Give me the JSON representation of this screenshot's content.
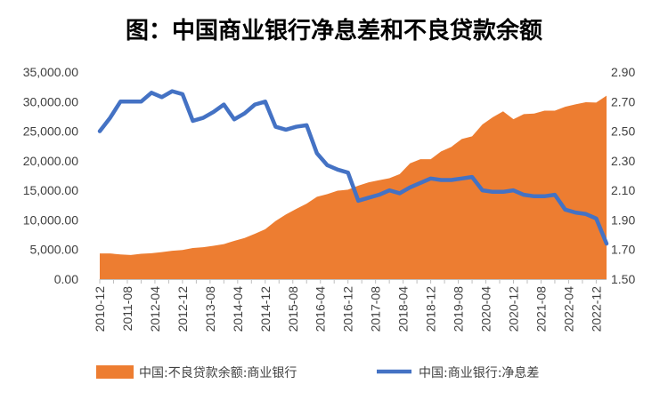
{
  "chart_data": {
    "type": "area+line",
    "title": "图：中国商业银行净息差和不良贷款余额",
    "xlabel": "",
    "ylabel": "",
    "y_left": {
      "min": 0,
      "max": 35000,
      "step": 5000,
      "ticks": [
        "0.00",
        "5,000.00",
        "10,000.00",
        "15,000.00",
        "20,000.00",
        "25,000.00",
        "30,000.00",
        "35,000.00"
      ]
    },
    "y_right": {
      "min": 1.5,
      "max": 2.9,
      "step": 0.2,
      "ticks": [
        "1.50",
        "1.70",
        "1.90",
        "2.10",
        "2.30",
        "2.50",
        "2.70",
        "2.90"
      ]
    },
    "x_tick_labels": [
      "2010-12",
      "2011-08",
      "2012-04",
      "2012-12",
      "2013-08",
      "2014-04",
      "2014-12",
      "2015-08",
      "2016-04",
      "2016-12",
      "2017-08",
      "2018-04",
      "2018-12",
      "2019-08",
      "2020-04",
      "2020-12",
      "2021-08",
      "2022-04",
      "2022-12"
    ],
    "legend_position": "bottom",
    "grid": false,
    "series": [
      {
        "name": "中国:不良贷款余额:商业银行",
        "kind": "area",
        "axis": "left",
        "color": "#ED7D31",
        "x": [
          "2010-12",
          "2011-03",
          "2011-06",
          "2011-09",
          "2011-12",
          "2012-03",
          "2012-06",
          "2012-09",
          "2012-12",
          "2013-03",
          "2013-06",
          "2013-09",
          "2013-12",
          "2014-03",
          "2014-06",
          "2014-09",
          "2014-12",
          "2015-03",
          "2015-06",
          "2015-09",
          "2015-12",
          "2016-03",
          "2016-06",
          "2016-09",
          "2016-12",
          "2017-03",
          "2017-06",
          "2017-09",
          "2017-12",
          "2018-03",
          "2018-06",
          "2018-09",
          "2018-12",
          "2019-03",
          "2019-06",
          "2019-09",
          "2019-12",
          "2020-03",
          "2020-06",
          "2020-09",
          "2020-12",
          "2021-03",
          "2021-06",
          "2021-09",
          "2021-12",
          "2022-03",
          "2022-06",
          "2022-09",
          "2022-12",
          "2023-03"
        ],
        "values": [
          4336,
          4332,
          4175,
          4078,
          4279,
          4382,
          4564,
          4788,
          4929,
          5265,
          5395,
          5636,
          5921,
          6461,
          6944,
          7669,
          8426,
          9825,
          10919,
          11863,
          12744,
          13921,
          14373,
          14939,
          15123,
          15795,
          16358,
          16704,
          17057,
          17742,
          19571,
          20254,
          20254,
          21571,
          22352,
          23672,
          24135,
          26136,
          27365,
          28350,
          27015,
          27883,
          27983,
          28470,
          28470,
          29122,
          29534,
          29889,
          29829,
          31000
        ]
      },
      {
        "name": "中国:商业银行:净息差",
        "kind": "line",
        "axis": "right",
        "color": "#4472C4",
        "x": [
          "2010-12",
          "2011-03",
          "2011-06",
          "2011-09",
          "2011-12",
          "2012-03",
          "2012-06",
          "2012-09",
          "2012-12",
          "2013-03",
          "2013-06",
          "2013-09",
          "2013-12",
          "2014-03",
          "2014-06",
          "2014-09",
          "2014-12",
          "2015-03",
          "2015-06",
          "2015-09",
          "2015-12",
          "2016-03",
          "2016-06",
          "2016-09",
          "2016-12",
          "2017-03",
          "2017-06",
          "2017-09",
          "2017-12",
          "2018-03",
          "2018-06",
          "2018-09",
          "2018-12",
          "2019-03",
          "2019-06",
          "2019-09",
          "2019-12",
          "2020-03",
          "2020-06",
          "2020-09",
          "2020-12",
          "2021-03",
          "2021-06",
          "2021-09",
          "2021-12",
          "2022-03",
          "2022-06",
          "2022-09",
          "2022-12",
          "2023-03"
        ],
        "values": [
          2.5,
          2.59,
          2.7,
          2.7,
          2.7,
          2.76,
          2.73,
          2.77,
          2.75,
          2.57,
          2.59,
          2.63,
          2.68,
          2.58,
          2.62,
          2.68,
          2.7,
          2.53,
          2.51,
          2.53,
          2.54,
          2.35,
          2.27,
          2.24,
          2.22,
          2.03,
          2.05,
          2.07,
          2.1,
          2.08,
          2.12,
          2.15,
          2.18,
          2.17,
          2.17,
          2.18,
          2.19,
          2.1,
          2.09,
          2.09,
          2.1,
          2.07,
          2.06,
          2.06,
          2.07,
          1.97,
          1.95,
          1.94,
          1.91,
          1.74
        ]
      }
    ]
  }
}
